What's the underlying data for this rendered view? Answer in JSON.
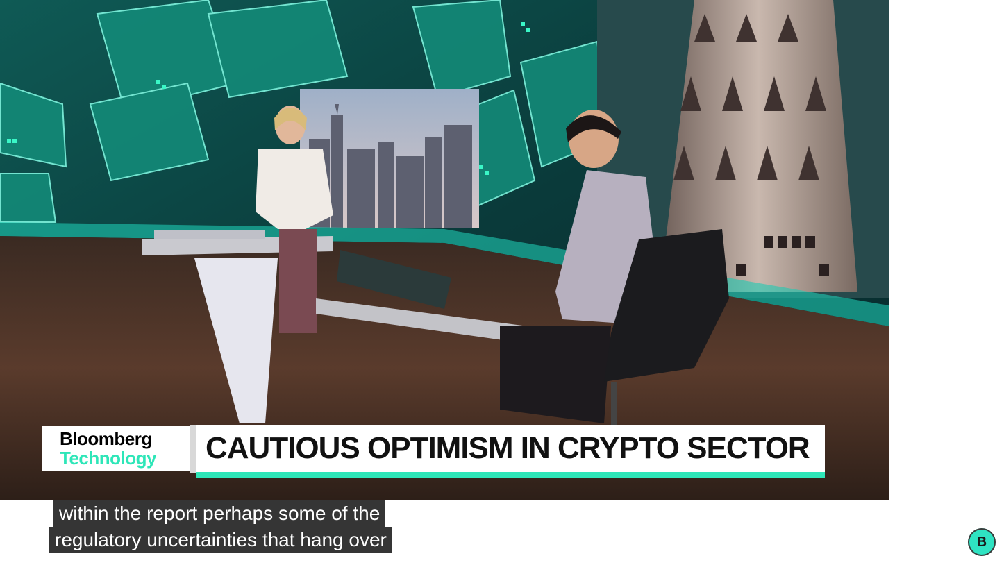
{
  "video": {
    "scene_icon": "news-studio-scene",
    "accent_color": "#2ee6b8",
    "lower_third": {
      "brand_line1": "Bloomberg",
      "brand_line2": "Technology",
      "brand_color": "#2ee6b8",
      "headline": "CAUTIOUS OPTIMISM IN CRYPTO SECTOR"
    },
    "captions": [
      "within the report perhaps some of the",
      "regulatory uncertainties that hang over"
    ]
  },
  "channel_badge": {
    "letter": "B",
    "icon": "channel-watermark-icon",
    "color": "#2fe3c2"
  }
}
